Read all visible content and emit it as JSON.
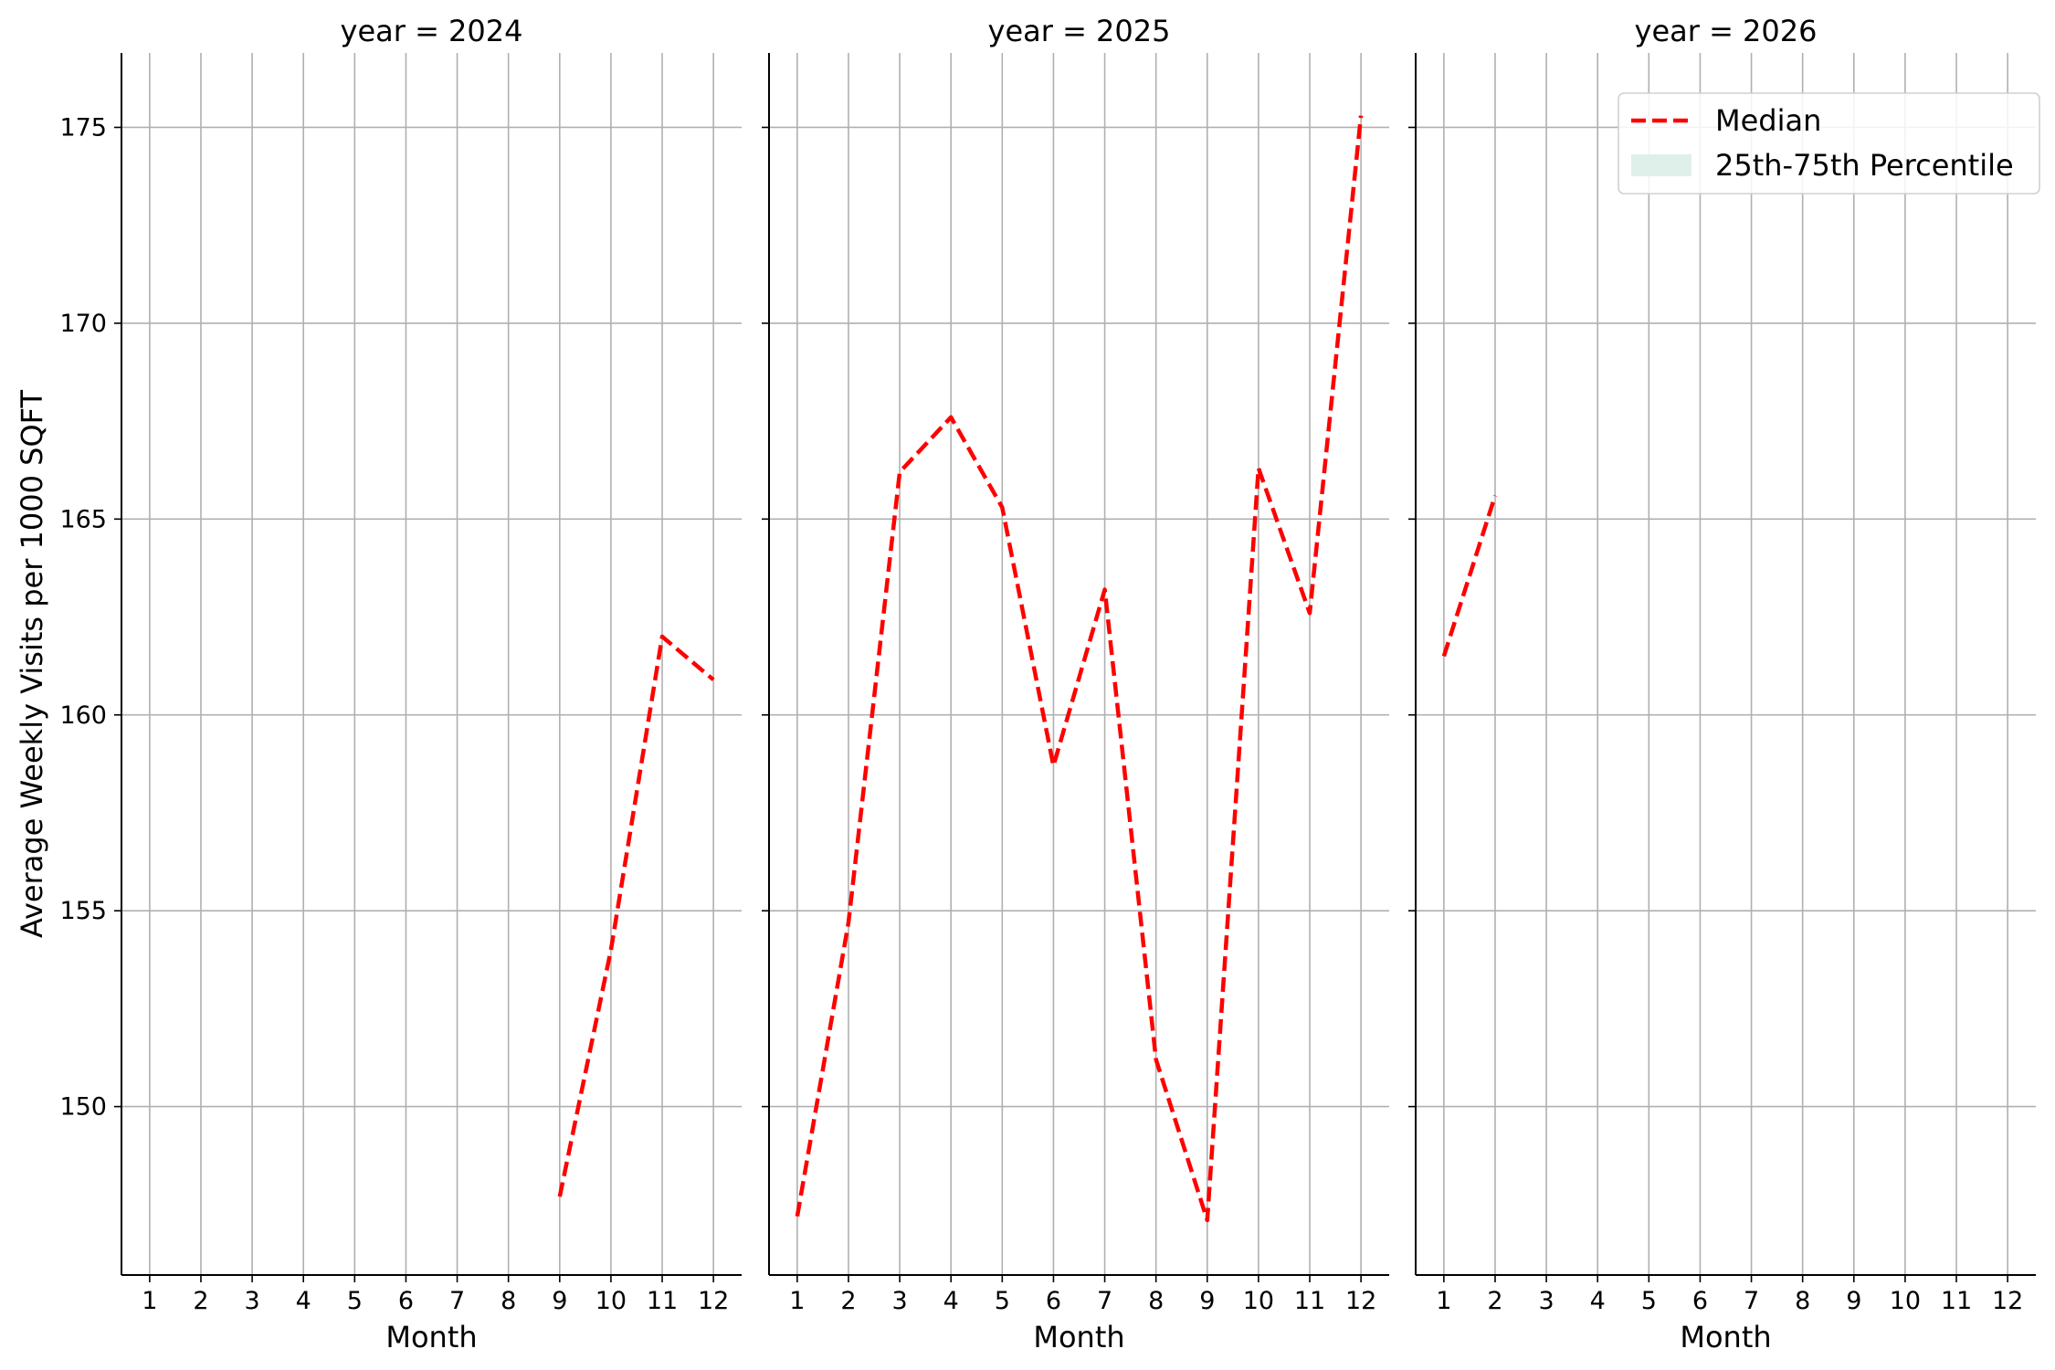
{
  "chart_data": {
    "type": "line",
    "ylabel": "Average Weekly Visits per 1000 SQFT",
    "ylim": [
      145.7,
      176.9
    ],
    "yticks": [
      150,
      155,
      160,
      165,
      170,
      175
    ],
    "xlim": [
      0.45,
      12.55
    ],
    "xticks": [
      "1",
      "2",
      "3",
      "4",
      "5",
      "6",
      "7",
      "8",
      "9",
      "10",
      "11",
      "12"
    ],
    "grid": true,
    "legend": {
      "placement": "top-right",
      "entries": [
        {
          "label": "Median",
          "color": "#ff0000",
          "style": "dashed"
        },
        {
          "label": "25th-75th Percentile",
          "color": "#dff0ea",
          "style": "fill"
        }
      ]
    },
    "panels": [
      {
        "title": "year = 2024",
        "xlabel": "Month",
        "series": [
          {
            "x": [
              9,
              10,
              11,
              12
            ],
            "y": [
              147.7,
              154.0,
              162.0,
              160.9
            ]
          }
        ]
      },
      {
        "title": "year = 2025",
        "xlabel": "Month",
        "series": [
          {
            "x": [
              1,
              2,
              3,
              4,
              5,
              6,
              7,
              8,
              9,
              10,
              11,
              12
            ],
            "y": [
              147.2,
              154.7,
              166.2,
              167.6,
              165.3,
              158.7,
              163.2,
              151.2,
              147.1,
              166.3,
              162.6,
              175.3
            ]
          }
        ]
      },
      {
        "title": "year = 2026",
        "xlabel": "Month",
        "series": [
          {
            "x": [
              1,
              2
            ],
            "y": [
              161.5,
              165.6
            ]
          }
        ]
      }
    ]
  }
}
